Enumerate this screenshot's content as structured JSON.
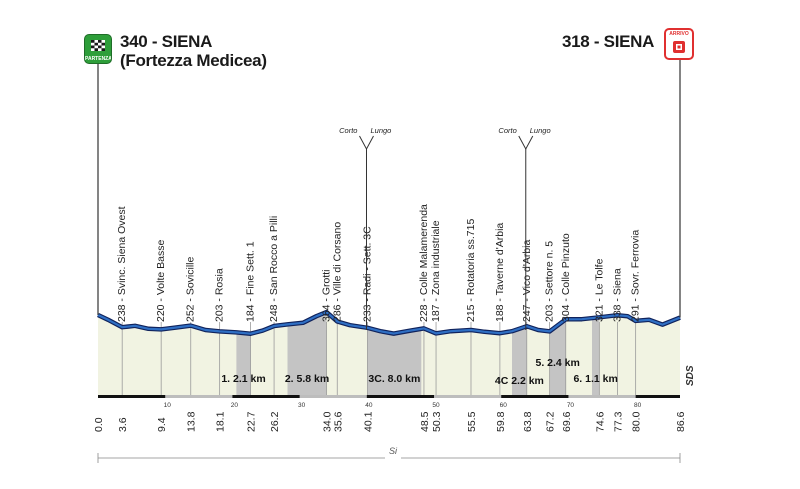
{
  "start": {
    "title": "340 - SIENA",
    "subtitle": "(Fortezza Medicea)",
    "badge_label": "PARTENZA",
    "icon": "checkered-flag-icon",
    "color": "#2e9e3a"
  },
  "finish": {
    "title": "318 - SIENA",
    "badge_label": "ARRIVO",
    "icon": "finish-target-icon",
    "color": "#e03030"
  },
  "sds_label": "SDS",
  "si_label": "Si",
  "chart_data": {
    "type": "area",
    "title": "",
    "xlabel": "",
    "ylabel": "",
    "xlim": [
      0,
      86.6
    ],
    "km_ticks": [
      0,
      10,
      20,
      30,
      40,
      50,
      60,
      70,
      80
    ],
    "km_labels": [
      "0.0",
      "3.6",
      "9.4",
      "13.8",
      "18.1",
      "22.7",
      "26.2",
      "34.0",
      "35.6",
      "40.1",
      "48.5",
      "50.3",
      "55.5",
      "59.8",
      "63.8",
      "67.2",
      "69.6",
      "74.6",
      "77.3",
      "80.0",
      "86.6"
    ],
    "waypoints": [
      {
        "km": 3.6,
        "label": "238 - Svinc. Siena Ovest"
      },
      {
        "km": 9.4,
        "label": "220 - Volte Basse"
      },
      {
        "km": 13.8,
        "label": "252 - Sovicille"
      },
      {
        "km": 18.1,
        "label": "203 - Rosia"
      },
      {
        "km": 22.7,
        "label": "184 - Fine Sett. 1"
      },
      {
        "km": 26.2,
        "label": "248 - San Rocco a Pilli"
      },
      {
        "km": 34.0,
        "label": "364 - Grotti"
      },
      {
        "km": 35.6,
        "label": "286 - Ville di Corsano"
      },
      {
        "km": 40.1,
        "label": "233 - Radi - Sett. 3C"
      },
      {
        "km": 48.5,
        "label": "228 - Colle Malamerenda"
      },
      {
        "km": 50.3,
        "label": "187 - Zona industriale"
      },
      {
        "km": 55.5,
        "label": "215 - Rotatoria ss.715"
      },
      {
        "km": 59.8,
        "label": "188 - Taverne d'Arbia"
      },
      {
        "km": 63.8,
        "label": "247 - Vico d'Arbia"
      },
      {
        "km": 67.2,
        "label": "203 - Settore n. 5"
      },
      {
        "km": 69.6,
        "label": "304 - Colle Pinzuto"
      },
      {
        "km": 74.6,
        "label": "321 - Le Tolfe"
      },
      {
        "km": 77.3,
        "label": "338 - Siena"
      },
      {
        "km": 80.0,
        "label": "291 - Sovr. Ferrovia"
      }
    ],
    "sectors": [
      {
        "label": "1. 2.1 km",
        "from": 20.6,
        "to": 22.7
      },
      {
        "label": "2. 5.8 km",
        "from": 28.2,
        "to": 34.0
      },
      {
        "label": "3C. 8.0 km",
        "from": 40.1,
        "to": 48.1
      },
      {
        "label": "4C 2.2 km",
        "from": 61.6,
        "to": 63.8
      },
      {
        "label": "5. 2.4 km",
        "from": 67.2,
        "to": 69.6
      },
      {
        "label": "6. 1.1 km",
        "from": 73.5,
        "to": 74.6
      }
    ],
    "route_options": [
      {
        "km": 40.1,
        "short_label": "Corto",
        "long_label": "Lungo"
      },
      {
        "km": 63.8,
        "short_label": "Corto",
        "long_label": "Lungo"
      }
    ],
    "profile": [
      [
        0,
        340
      ],
      [
        1.5,
        300
      ],
      [
        3.6,
        238
      ],
      [
        5.5,
        250
      ],
      [
        7.5,
        225
      ],
      [
        9.4,
        220
      ],
      [
        11.5,
        235
      ],
      [
        13.8,
        252
      ],
      [
        16,
        215
      ],
      [
        18.1,
        203
      ],
      [
        20.6,
        195
      ],
      [
        22.7,
        184
      ],
      [
        24.5,
        210
      ],
      [
        26.2,
        248
      ],
      [
        28.2,
        262
      ],
      [
        30.5,
        275
      ],
      [
        32.5,
        330
      ],
      [
        34.0,
        364
      ],
      [
        35.6,
        286
      ],
      [
        37.5,
        255
      ],
      [
        40.1,
        233
      ],
      [
        42,
        205
      ],
      [
        44,
        185
      ],
      [
        46.5,
        210
      ],
      [
        48.5,
        228
      ],
      [
        50.3,
        187
      ],
      [
        52.5,
        205
      ],
      [
        55.5,
        215
      ],
      [
        57.5,
        200
      ],
      [
        59.8,
        188
      ],
      [
        61.6,
        205
      ],
      [
        63.8,
        247
      ],
      [
        65.5,
        215
      ],
      [
        67.2,
        203
      ],
      [
        69.6,
        304
      ],
      [
        72,
        305
      ],
      [
        74.6,
        321
      ],
      [
        77.3,
        338
      ],
      [
        78.8,
        330
      ],
      [
        80.0,
        291
      ],
      [
        82,
        300
      ],
      [
        84,
        260
      ],
      [
        86.6,
        318
      ]
    ],
    "ylim": [
      0,
      700
    ],
    "grid": false,
    "legend": "none"
  }
}
